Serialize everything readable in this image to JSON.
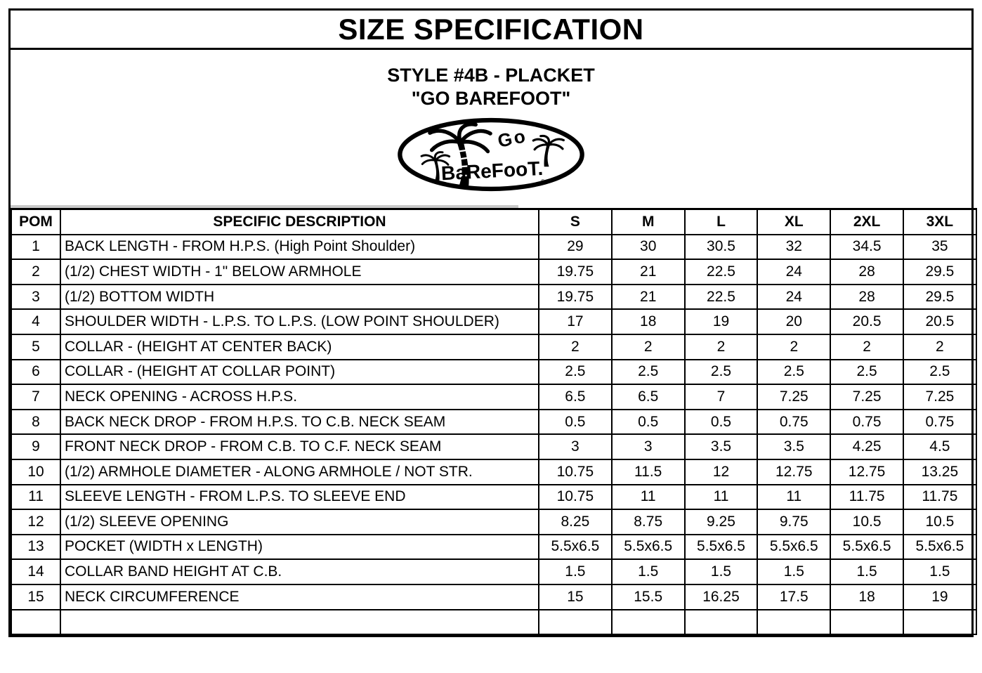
{
  "header": {
    "title": "SIZE SPECIFICATION",
    "style_line": "STYLE #4B - PLACKET",
    "brand_line": "\"GO BAREFOOT\""
  },
  "logo": {
    "text_top": "Go",
    "text_main": "BaReFooT.",
    "registered_mark": "®"
  },
  "table": {
    "columns": [
      "POM",
      "SPECIFIC DESCRIPTION",
      "S",
      "M",
      "L",
      "XL",
      "2XL",
      "3XL"
    ],
    "rows": [
      {
        "pom": "1",
        "description": "BACK LENGTH - FROM H.P.S. (High Point Shoulder)",
        "values": [
          "29",
          "30",
          "30.5",
          "32",
          "34.5",
          "35"
        ]
      },
      {
        "pom": "2",
        "description": "(1/2) CHEST WIDTH - 1\" BELOW ARMHOLE",
        "values": [
          "19.75",
          "21",
          "22.5",
          "24",
          "28",
          "29.5"
        ]
      },
      {
        "pom": "3",
        "description": "(1/2) BOTTOM WIDTH",
        "values": [
          "19.75",
          "21",
          "22.5",
          "24",
          "28",
          "29.5"
        ]
      },
      {
        "pom": "4",
        "description": "SHOULDER WIDTH - L.P.S. TO L.P.S. (LOW POINT SHOULDER)",
        "values": [
          "17",
          "18",
          "19",
          "20",
          "20.5",
          "20.5"
        ]
      },
      {
        "pom": "5",
        "description": "COLLAR - (HEIGHT AT CENTER BACK)",
        "values": [
          "2",
          "2",
          "2",
          "2",
          "2",
          "2"
        ]
      },
      {
        "pom": "6",
        "description": "COLLAR - (HEIGHT AT COLLAR POINT)",
        "values": [
          "2.5",
          "2.5",
          "2.5",
          "2.5",
          "2.5",
          "2.5"
        ]
      },
      {
        "pom": "7",
        "description": "NECK OPENING - ACROSS H.P.S.",
        "values": [
          "6.5",
          "6.5",
          "7",
          "7.25",
          "7.25",
          "7.25"
        ]
      },
      {
        "pom": "8",
        "description": "BACK NECK DROP - FROM H.P.S. TO C.B. NECK SEAM",
        "values": [
          "0.5",
          "0.5",
          "0.5",
          "0.75",
          "0.75",
          "0.75"
        ]
      },
      {
        "pom": "9",
        "description": "FRONT NECK DROP - FROM C.B. TO C.F. NECK SEAM",
        "values": [
          "3",
          "3",
          "3.5",
          "3.5",
          "4.25",
          "4.5"
        ]
      },
      {
        "pom": "10",
        "description": "(1/2) ARMHOLE DIAMETER - ALONG ARMHOLE / NOT STR.",
        "values": [
          "10.75",
          "11.5",
          "12",
          "12.75",
          "12.75",
          "13.25"
        ]
      },
      {
        "pom": "11",
        "description": "SLEEVE LENGTH - FROM L.P.S. TO SLEEVE END",
        "values": [
          "10.75",
          "11",
          "11",
          "11",
          "11.75",
          "11.75"
        ]
      },
      {
        "pom": "12",
        "description": "(1/2) SLEEVE OPENING",
        "values": [
          "8.25",
          "8.75",
          "9.25",
          "9.75",
          "10.5",
          "10.5"
        ]
      },
      {
        "pom": "13",
        "description": "POCKET (WIDTH x LENGTH)",
        "values": [
          "5.5x6.5",
          "5.5x6.5",
          "5.5x6.5",
          "5.5x6.5",
          "5.5x6.5",
          "5.5x6.5"
        ]
      },
      {
        "pom": "14",
        "description": "COLLAR BAND HEIGHT AT C.B.",
        "values": [
          "1.5",
          "1.5",
          "1.5",
          "1.5",
          "1.5",
          "1.5"
        ]
      },
      {
        "pom": "15",
        "description": "NECK CIRCUMFERENCE",
        "values": [
          "15",
          "15.5",
          "16.25",
          "17.5",
          "18",
          "19"
        ]
      },
      {
        "pom": "",
        "description": "",
        "values": [
          "",
          "",
          "",
          "",
          "",
          ""
        ]
      }
    ]
  }
}
